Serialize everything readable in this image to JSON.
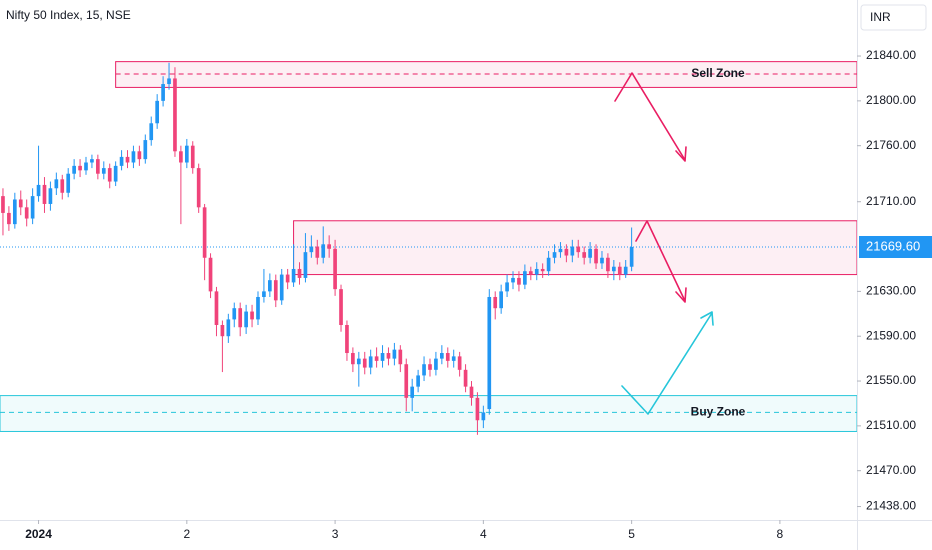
{
  "chart_data": {
    "type": "candlestick",
    "title": "Nifty 50 Index, 15, NSE",
    "currency": "INR",
    "up_color": "#2196f3",
    "down_color": "#f0437a",
    "xlim": [
      -0.5,
      144
    ],
    "ylim": [
      21426,
      21890
    ],
    "xticks": [
      {
        "value": 6,
        "label": "2024"
      },
      {
        "value": 31,
        "label": "2"
      },
      {
        "value": 56,
        "label": "3"
      },
      {
        "value": 81,
        "label": "4"
      },
      {
        "value": 106,
        "label": "5"
      },
      {
        "value": 131,
        "label": "8"
      }
    ],
    "yticks": [
      {
        "value": 21840,
        "label": "21840.00"
      },
      {
        "value": 21800,
        "label": "21800.00"
      },
      {
        "value": 21760,
        "label": "21760.00"
      },
      {
        "value": 21710,
        "label": "21710.00"
      },
      {
        "value": 21630,
        "label": "21630.00"
      },
      {
        "value": 21590,
        "label": "21590.00"
      },
      {
        "value": 21550,
        "label": "21550.00"
      },
      {
        "value": 21510,
        "label": "21510.00"
      },
      {
        "value": 21470,
        "label": "21470.00"
      },
      {
        "value": 21438,
        "label": "21438.00"
      }
    ],
    "last_price": {
      "value": 21669.6,
      "label": "21669.60"
    },
    "series": {
      "open": [
        21715,
        21700,
        21690,
        21712,
        21705,
        21695,
        21715,
        21725,
        21708,
        21722,
        21730,
        21718,
        21735,
        21742,
        21738,
        21745,
        21748,
        21735,
        21740,
        21728,
        21742,
        21750,
        21745,
        21755,
        21748,
        21765,
        21780,
        21800,
        21815,
        21820,
        21755,
        21745,
        21760,
        21740,
        21705,
        21660,
        21630,
        21600,
        21590,
        21605,
        21615,
        21598,
        21612,
        21605,
        21625,
        21630,
        21640,
        21622,
        21645,
        21638,
        21650,
        21642,
        21665,
        21670,
        21660,
        21672,
        21668,
        21632,
        21600,
        21575,
        21565,
        21570,
        21562,
        21572,
        21568,
        21575,
        21570,
        21578,
        21565,
        21535,
        21545,
        21555,
        21565,
        21560,
        21570,
        21575,
        21568,
        21572,
        21560,
        21545,
        21535,
        21515,
        21525,
        21625,
        21615,
        21630,
        21638,
        21642,
        21636,
        21648,
        21645,
        21650,
        21648,
        21660,
        21665,
        21668,
        21662,
        21670,
        21665,
        21660,
        21668,
        21655,
        21660,
        21648,
        21652,
        21645,
        21652
      ],
      "high": [
        21722,
        21706,
        21718,
        21720,
        21712,
        21722,
        21760,
        21732,
        21728,
        21736,
        21734,
        21740,
        21748,
        21748,
        21750,
        21752,
        21752,
        21746,
        21744,
        21746,
        21756,
        21756,
        21760,
        21760,
        21770,
        21786,
        21806,
        21822,
        21834,
        21830,
        21760,
        21766,
        21764,
        21744,
        21708,
        21664,
        21634,
        21604,
        21610,
        21620,
        21620,
        21618,
        21618,
        21630,
        21650,
        21646,
        21645,
        21650,
        21650,
        21672,
        21656,
        21682,
        21680,
        21676,
        21688,
        21680,
        21676,
        21636,
        21604,
        21580,
        21576,
        21576,
        21578,
        21580,
        21582,
        21580,
        21584,
        21582,
        21570,
        21552,
        21560,
        21572,
        21570,
        21576,
        21582,
        21580,
        21578,
        21576,
        21565,
        21550,
        21540,
        21528,
        21632,
        21630,
        21636,
        21645,
        21648,
        21648,
        21654,
        21652,
        21656,
        21655,
        21666,
        21672,
        21674,
        21672,
        21676,
        21676,
        21670,
        21674,
        21672,
        21666,
        21664,
        21658,
        21656,
        21658,
        21687
      ],
      "low": [
        21680,
        21684,
        21686,
        21698,
        21688,
        21690,
        21710,
        21700,
        21702,
        21716,
        21712,
        21714,
        21730,
        21732,
        21734,
        21740,
        21730,
        21730,
        21722,
        21724,
        21738,
        21740,
        21740,
        21742,
        21744,
        21760,
        21775,
        21795,
        21810,
        21750,
        21690,
        21740,
        21735,
        21700,
        21640,
        21624,
        21590,
        21558,
        21584,
        21598,
        21590,
        21592,
        21598,
        21600,
        21620,
        21625,
        21616,
        21618,
        21632,
        21634,
        21636,
        21638,
        21660,
        21654,
        21655,
        21660,
        21626,
        21594,
        21568,
        21558,
        21545,
        21556,
        21556,
        21562,
        21562,
        21564,
        21564,
        21558,
        21523,
        21523,
        21540,
        21550,
        21554,
        21555,
        21565,
        21562,
        21562,
        21554,
        21540,
        21528,
        21502,
        21508,
        21520,
        21605,
        21610,
        21625,
        21632,
        21630,
        21632,
        21640,
        21640,
        21642,
        21644,
        21655,
        21660,
        21656,
        21656,
        21660,
        21654,
        21655,
        21650,
        21650,
        21642,
        21640,
        21640,
        21642,
        21648
      ],
      "close": [
        21700,
        21690,
        21712,
        21705,
        21695,
        21715,
        21725,
        21708,
        21722,
        21730,
        21718,
        21735,
        21742,
        21738,
        21745,
        21748,
        21735,
        21740,
        21728,
        21742,
        21750,
        21745,
        21755,
        21748,
        21765,
        21780,
        21800,
        21815,
        21820,
        21755,
        21745,
        21760,
        21740,
        21705,
        21660,
        21630,
        21600,
        21590,
        21605,
        21615,
        21598,
        21612,
        21605,
        21625,
        21630,
        21640,
        21622,
        21645,
        21638,
        21650,
        21642,
        21665,
        21670,
        21660,
        21672,
        21668,
        21632,
        21600,
        21575,
        21565,
        21570,
        21562,
        21572,
        21568,
        21575,
        21570,
        21578,
        21565,
        21535,
        21545,
        21555,
        21565,
        21560,
        21570,
        21575,
        21568,
        21572,
        21560,
        21545,
        21535,
        21515,
        21522,
        21625,
        21615,
        21630,
        21638,
        21642,
        21636,
        21648,
        21645,
        21650,
        21648,
        21660,
        21665,
        21668,
        21662,
        21670,
        21665,
        21660,
        21668,
        21655,
        21660,
        21648,
        21652,
        21645,
        21652,
        21669.6
      ]
    },
    "zones": [
      {
        "name": "Sell Zone",
        "color": "#e91e63",
        "text_color": "#e91e63",
        "top": 21835,
        "bottom": 21812,
        "mid": 21824,
        "start": 19
      },
      {
        "color": "#e91e63",
        "top": 21693,
        "bottom": 21645,
        "start": 49
      },
      {
        "name": "Buy Zone",
        "color": "#26c6da",
        "text_color": "#089981",
        "top": 21537,
        "bottom": 21505,
        "mid": 21522,
        "start": -0.5
      }
    ]
  }
}
